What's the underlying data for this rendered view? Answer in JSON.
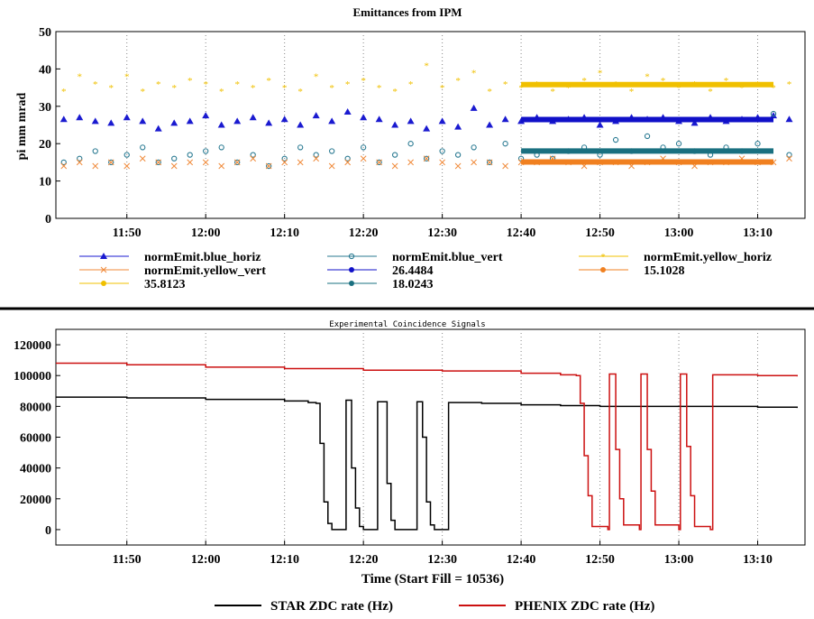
{
  "chart_data": [
    {
      "type": "scatter",
      "title": "Emittances from IPM",
      "xlabel": "",
      "ylabel": "pi mm mrad",
      "xlim": [
        "11:41",
        "13:16"
      ],
      "ylim": [
        0,
        50
      ],
      "yticks": [
        0,
        10,
        20,
        30,
        40,
        50
      ],
      "xticks": [
        "11:50",
        "12:00",
        "12:10",
        "12:20",
        "12:30",
        "12:40",
        "12:50",
        "13:00",
        "13:10"
      ],
      "grid": "vertical dotted",
      "legend_position": "below",
      "series": [
        {
          "name": "normEmit.blue_horiz",
          "color": "#1a1ad0",
          "marker": "triangle",
          "x": [
            "11:42",
            "11:44",
            "11:46",
            "11:48",
            "11:50",
            "11:52",
            "11:54",
            "11:56",
            "11:58",
            "12:00",
            "12:02",
            "12:04",
            "12:06",
            "12:08",
            "12:10",
            "12:12",
            "12:14",
            "12:16",
            "12:18",
            "12:20",
            "12:22",
            "12:24",
            "12:26",
            "12:28",
            "12:30",
            "12:32",
            "12:34",
            "12:36",
            "12:38",
            "12:40",
            "12:42",
            "12:44",
            "12:46",
            "12:48",
            "12:50",
            "12:52",
            "12:54",
            "12:56",
            "12:58",
            "13:00",
            "13:02",
            "13:04",
            "13:06",
            "13:08",
            "13:10",
            "13:12",
            "13:14"
          ],
          "y": [
            26.5,
            27,
            26,
            25.5,
            27,
            26,
            24,
            25.5,
            26,
            27.5,
            25,
            26,
            27,
            25.5,
            26.5,
            25,
            27.5,
            26,
            28.5,
            27,
            26.5,
            25,
            26,
            24,
            26,
            24.5,
            29.5,
            25,
            26.5,
            26,
            27,
            26,
            26.5,
            27,
            25,
            26,
            27,
            26.5,
            27,
            26,
            25.5,
            27,
            26,
            26.5,
            27,
            27.5,
            26.5
          ]
        },
        {
          "name": "normEmit.blue_vert",
          "color": "#2a7a92",
          "marker": "circle",
          "x": [
            "11:42",
            "11:44",
            "11:46",
            "11:48",
            "11:50",
            "11:52",
            "11:54",
            "11:56",
            "11:58",
            "12:00",
            "12:02",
            "12:04",
            "12:06",
            "12:08",
            "12:10",
            "12:12",
            "12:14",
            "12:16",
            "12:18",
            "12:20",
            "12:22",
            "12:24",
            "12:26",
            "12:28",
            "12:30",
            "12:32",
            "12:34",
            "12:36",
            "12:38",
            "12:40",
            "12:42",
            "12:44",
            "12:46",
            "12:48",
            "12:50",
            "12:52",
            "12:54",
            "12:56",
            "12:58",
            "13:00",
            "13:02",
            "13:04",
            "13:06",
            "13:08",
            "13:10",
            "13:12",
            "13:14"
          ],
          "y": [
            15,
            16,
            18,
            15,
            17,
            19,
            15,
            16,
            17,
            18,
            19,
            15,
            17,
            14,
            16,
            19,
            17,
            18,
            16,
            19,
            15,
            17,
            20,
            16,
            18,
            17,
            19,
            15,
            20,
            16,
            17,
            16,
            18,
            19,
            17,
            21,
            18,
            22,
            19,
            20,
            18,
            17,
            19,
            18,
            20,
            28,
            17
          ]
        },
        {
          "name": "normEmit.yellow_horiz",
          "color": "#f0c000",
          "marker": "star",
          "x": [
            "11:42",
            "11:44",
            "11:46",
            "11:48",
            "11:50",
            "11:52",
            "11:54",
            "11:56",
            "11:58",
            "12:00",
            "12:02",
            "12:04",
            "12:06",
            "12:08",
            "12:10",
            "12:12",
            "12:14",
            "12:16",
            "12:18",
            "12:20",
            "12:22",
            "12:24",
            "12:26",
            "12:28",
            "12:30",
            "12:32",
            "12:34",
            "12:36",
            "12:38",
            "12:40",
            "12:42",
            "12:44",
            "12:46",
            "12:48",
            "12:50",
            "12:52",
            "12:54",
            "12:56",
            "12:58",
            "13:00",
            "13:02",
            "13:04",
            "13:06",
            "13:08",
            "13:10",
            "13:12",
            "13:14"
          ],
          "y": [
            34,
            38,
            36,
            35,
            38,
            34,
            36,
            35,
            37,
            36,
            34,
            36,
            35,
            37,
            35,
            34,
            38,
            35,
            36,
            37,
            35,
            34,
            36,
            41,
            35,
            37,
            39,
            34,
            36,
            35,
            36,
            34,
            35,
            37,
            39,
            36,
            34,
            38,
            37,
            35,
            36,
            34,
            37,
            35,
            36,
            35,
            36
          ]
        },
        {
          "name": "normEmit.yellow_vert",
          "color": "#f08a3a",
          "marker": "x",
          "x": [
            "11:42",
            "11:44",
            "11:46",
            "11:48",
            "11:50",
            "11:52",
            "11:54",
            "11:56",
            "11:58",
            "12:00",
            "12:02",
            "12:04",
            "12:06",
            "12:08",
            "12:10",
            "12:12",
            "12:14",
            "12:16",
            "12:18",
            "12:20",
            "12:22",
            "12:24",
            "12:26",
            "12:28",
            "12:30",
            "12:32",
            "12:34",
            "12:36",
            "12:38",
            "12:40",
            "12:42",
            "12:44",
            "12:46",
            "12:48",
            "12:50",
            "12:52",
            "12:54",
            "12:56",
            "12:58",
            "13:00",
            "13:02",
            "13:04",
            "13:06",
            "13:08",
            "13:10",
            "13:12",
            "13:14"
          ],
          "y": [
            14,
            15,
            14,
            15,
            14,
            16,
            15,
            14,
            15,
            15,
            14,
            15,
            16,
            14,
            15,
            15,
            16,
            14,
            15,
            16,
            15,
            14,
            15,
            16,
            15,
            14,
            15,
            15,
            14,
            15,
            15,
            16,
            15,
            14,
            15,
            15,
            14,
            15,
            16,
            15,
            14,
            15,
            15,
            16,
            15,
            15,
            16
          ]
        },
        {
          "name": "26.4484",
          "color": "#1010c8",
          "marker": "dot",
          "x": [
            "12:40",
            "13:12"
          ],
          "y": [
            26.4484,
            26.4484
          ]
        },
        {
          "name": "15.1028",
          "color": "#f08020",
          "marker": "dot",
          "x": [
            "12:40",
            "13:12"
          ],
          "y": [
            15.1028,
            15.1028
          ]
        },
        {
          "name": "35.8123",
          "color": "#f0c000",
          "marker": "dot",
          "x": [
            "12:40",
            "13:12"
          ],
          "y": [
            35.8123,
            35.8123
          ]
        },
        {
          "name": "18.0243",
          "color": "#1a7080",
          "marker": "dot",
          "x": [
            "12:40",
            "13:12"
          ],
          "y": [
            18.0243,
            18.0243
          ]
        }
      ]
    },
    {
      "type": "line",
      "title": "Experimental Coincidence Signals",
      "xlabel": "Time (Start Fill = 10536)",
      "ylabel": "",
      "xlim": [
        "11:41",
        "13:16"
      ],
      "ylim": [
        -10000,
        130000
      ],
      "yticks": [
        0,
        20000,
        40000,
        60000,
        80000,
        100000,
        120000
      ],
      "xticks": [
        "11:50",
        "12:00",
        "12:10",
        "12:20",
        "12:30",
        "12:40",
        "12:50",
        "13:00",
        "13:10"
      ],
      "grid": "vertical dotted",
      "legend_position": "bottom",
      "series": [
        {
          "name": "STAR ZDC rate (Hz)",
          "color": "#000000",
          "x": [
            "11:41",
            "11:50",
            "12:00",
            "12:10",
            "12:13",
            "12:14",
            "12:14.5",
            "12:15",
            "12:15.5",
            "12:16",
            "12:17.5",
            "12:17.8",
            "12:18.5",
            "12:19",
            "12:19.5",
            "12:20",
            "12:21.5",
            "12:21.8",
            "12:22.8",
            "12:23",
            "12:23.5",
            "12:24",
            "12:26.5",
            "12:26.8",
            "12:27.5",
            "12:28",
            "12:28.5",
            "12:29",
            "12:30.5",
            "12:30.8",
            "12:35",
            "12:40",
            "12:45",
            "12:50",
            "13:00",
            "13:10",
            "13:15"
          ],
          "y": [
            86000,
            85500,
            84500,
            83500,
            82500,
            82000,
            56000,
            18000,
            4000,
            0,
            0,
            84000,
            40000,
            14000,
            2000,
            0,
            0,
            83000,
            83000,
            30000,
            6000,
            0,
            0,
            83000,
            60000,
            18000,
            3000,
            0,
            0,
            82500,
            82000,
            81000,
            80500,
            80000,
            80000,
            79500,
            79000
          ]
        },
        {
          "name": "PHENIX ZDC rate (Hz)",
          "color": "#cc1010",
          "x": [
            "11:41",
            "11:50",
            "12:00",
            "12:10",
            "12:20",
            "12:30",
            "12:40",
            "12:45",
            "12:47",
            "12:47.5",
            "12:48",
            "12:48.5",
            "12:49",
            "12:51",
            "12:51.2",
            "12:52",
            "12:52.5",
            "12:53",
            "12:55",
            "12:55.2",
            "12:56",
            "12:56.5",
            "12:57",
            "13:00",
            "13:00.2",
            "13:01",
            "13:01.5",
            "13:02",
            "13:04",
            "13:04.3",
            "13:10",
            "13:15"
          ],
          "y": [
            108000,
            107000,
            105500,
            104500,
            103500,
            103000,
            101500,
            100500,
            100000,
            82000,
            48000,
            22000,
            2000,
            0,
            101000,
            52000,
            20000,
            3000,
            0,
            101000,
            52000,
            25000,
            3000,
            0,
            101000,
            54000,
            22000,
            2000,
            0,
            100500,
            100000,
            99500
          ]
        }
      ]
    }
  ]
}
